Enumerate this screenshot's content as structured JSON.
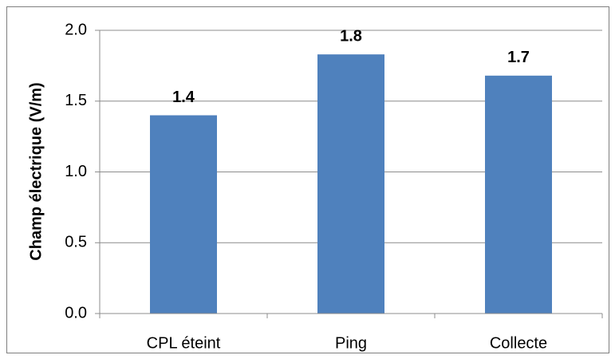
{
  "chart_data": {
    "type": "bar",
    "y_label": "Champ électrique (V/m)",
    "categories": [
      "CPL éteint",
      "Ping",
      "Collecte"
    ],
    "values": [
      1.4,
      1.83,
      1.68
    ],
    "value_labels": [
      "1.4",
      "1.8",
      "1.7"
    ],
    "color": "#4f81bd",
    "ylim": [
      0,
      2
    ],
    "yticks": [
      {
        "value": 0,
        "label": "0.0"
      },
      0.5,
      {
        "value": 1,
        "label": "1.0"
      },
      1.5,
      {
        "value": 2,
        "label": "2.0"
      }
    ],
    "grid": true
  }
}
